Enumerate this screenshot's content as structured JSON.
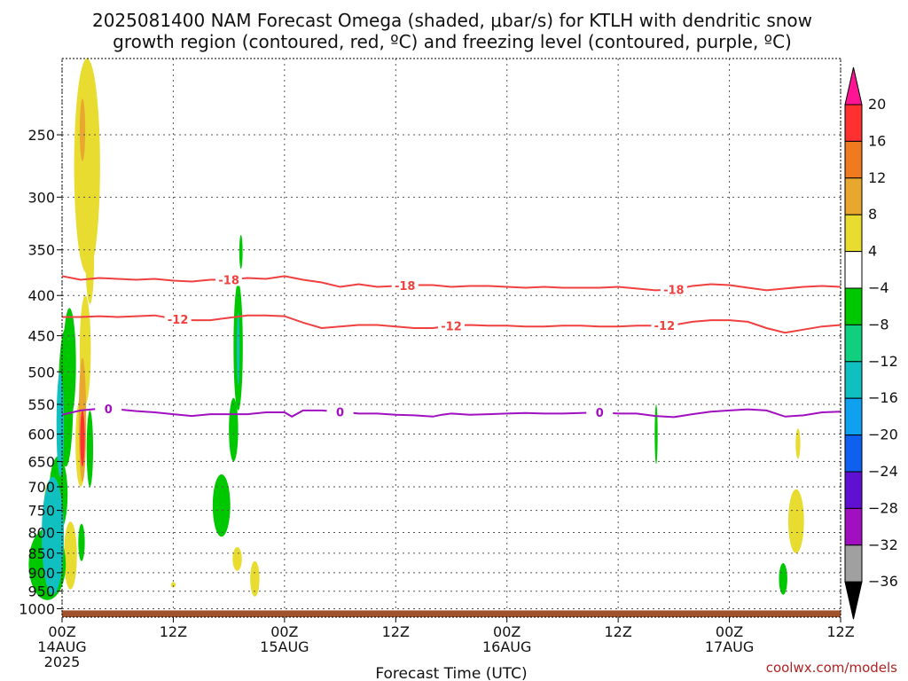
{
  "chart_data": {
    "type": "heatmap",
    "title_line1": "2025081400 NAM Forecast Omega (shaded, μbar/s) for KTLH with dendritic snow",
    "title_line2": "growth region (contoured, red, ºC) and freezing level (contoured, purple, ºC)",
    "xlabel": "Forecast Time (UTC)",
    "credit": "coolwx.com/models",
    "x_range_hours": [
      0,
      84
    ],
    "x_ticks": [
      {
        "h": 0,
        "line1": "00Z",
        "line2": "14AUG",
        "line3": "2025"
      },
      {
        "h": 12,
        "line1": "12Z",
        "line2": "",
        "line3": ""
      },
      {
        "h": 24,
        "line1": "00Z",
        "line2": "15AUG",
        "line3": ""
      },
      {
        "h": 36,
        "line1": "12Z",
        "line2": "",
        "line3": ""
      },
      {
        "h": 48,
        "line1": "00Z",
        "line2": "16AUG",
        "line3": ""
      },
      {
        "h": 60,
        "line1": "12Z",
        "line2": "",
        "line3": ""
      },
      {
        "h": 72,
        "line1": "00Z",
        "line2": "17AUG",
        "line3": ""
      },
      {
        "h": 84,
        "line1": "12Z",
        "line2": "",
        "line3": ""
      }
    ],
    "y_range_hpa": [
      200,
      1025
    ],
    "y_ticks": [
      250,
      300,
      350,
      400,
      450,
      500,
      550,
      600,
      650,
      700,
      750,
      800,
      850,
      900,
      950,
      1000
    ],
    "colorbar": {
      "labels": [
        "20",
        "16",
        "12",
        "8",
        "4",
        "−4",
        "−8",
        "−12",
        "−16",
        "−20",
        "−24",
        "−28",
        "−32",
        "−36"
      ],
      "colors": [
        "#ff1493",
        "#ff3030",
        "#f07a20",
        "#e8a830",
        "#e8dc30",
        "#ffffff",
        "#00c800",
        "#10d080",
        "#10c0c0",
        "#10a0f0",
        "#1060f0",
        "#6010d0",
        "#a010c0",
        "#a0a0a0",
        "#000000"
      ]
    },
    "contours": [
      {
        "name": "-18",
        "color": "#f04040",
        "label_h": [
          [
            18,
            "-18"
          ],
          [
            37,
            "-18"
          ],
          [
            66,
            "-18"
          ]
        ],
        "points": [
          [
            0,
            378
          ],
          [
            2,
            382
          ],
          [
            4,
            380
          ],
          [
            6,
            381
          ],
          [
            8,
            382
          ],
          [
            10,
            381
          ],
          [
            12,
            383
          ],
          [
            14,
            384
          ],
          [
            16,
            382
          ],
          [
            18,
            382
          ],
          [
            20,
            380
          ],
          [
            22,
            381
          ],
          [
            24,
            378
          ],
          [
            26,
            382
          ],
          [
            28,
            385
          ],
          [
            30,
            390
          ],
          [
            32,
            387
          ],
          [
            34,
            390
          ],
          [
            36,
            389
          ],
          [
            38,
            388
          ],
          [
            40,
            388
          ],
          [
            42,
            390
          ],
          [
            44,
            389
          ],
          [
            46,
            389
          ],
          [
            48,
            390
          ],
          [
            50,
            391
          ],
          [
            52,
            390
          ],
          [
            54,
            391
          ],
          [
            56,
            391
          ],
          [
            58,
            391
          ],
          [
            60,
            390
          ],
          [
            62,
            392
          ],
          [
            64,
            394
          ],
          [
            66,
            393
          ],
          [
            68,
            389
          ],
          [
            70,
            387
          ],
          [
            72,
            388
          ],
          [
            74,
            391
          ],
          [
            76,
            394
          ],
          [
            78,
            392
          ],
          [
            80,
            390
          ],
          [
            82,
            389
          ],
          [
            84,
            390
          ]
        ]
      },
      {
        "name": "-12",
        "color": "#f04040",
        "label_h": [
          [
            12.5,
            "-12"
          ],
          [
            42,
            "-12"
          ],
          [
            65,
            "-12"
          ]
        ],
        "points": [
          [
            0,
            426
          ],
          [
            2,
            426
          ],
          [
            4,
            425
          ],
          [
            6,
            426
          ],
          [
            8,
            425
          ],
          [
            10,
            424
          ],
          [
            12,
            428
          ],
          [
            14,
            430
          ],
          [
            16,
            430
          ],
          [
            18,
            427
          ],
          [
            20,
            424
          ],
          [
            22,
            424
          ],
          [
            24,
            425
          ],
          [
            26,
            433
          ],
          [
            28,
            440
          ],
          [
            30,
            438
          ],
          [
            32,
            436
          ],
          [
            34,
            436
          ],
          [
            36,
            438
          ],
          [
            38,
            440
          ],
          [
            40,
            440
          ],
          [
            42,
            437
          ],
          [
            44,
            436
          ],
          [
            46,
            437
          ],
          [
            48,
            437
          ],
          [
            50,
            438
          ],
          [
            52,
            438
          ],
          [
            54,
            437
          ],
          [
            56,
            437
          ],
          [
            58,
            438
          ],
          [
            60,
            438
          ],
          [
            62,
            437
          ],
          [
            64,
            437
          ],
          [
            66,
            436
          ],
          [
            68,
            432
          ],
          [
            70,
            430
          ],
          [
            72,
            430
          ],
          [
            74,
            432
          ],
          [
            76,
            440
          ],
          [
            78,
            446
          ],
          [
            80,
            442
          ],
          [
            82,
            438
          ],
          [
            84,
            436
          ]
        ]
      },
      {
        "name": "0",
        "color": "#a010c0",
        "label_h": [
          [
            5,
            "0"
          ],
          [
            30,
            "0"
          ],
          [
            58,
            "0"
          ]
        ],
        "points": [
          [
            0,
            567
          ],
          [
            2,
            560
          ],
          [
            4,
            557
          ],
          [
            6,
            558
          ],
          [
            8,
            561
          ],
          [
            10,
            563
          ],
          [
            12,
            566
          ],
          [
            14,
            569
          ],
          [
            16,
            566
          ],
          [
            18,
            566
          ],
          [
            20,
            566
          ],
          [
            22,
            563
          ],
          [
            24,
            563
          ],
          [
            24.8,
            570
          ],
          [
            26,
            560
          ],
          [
            28,
            560
          ],
          [
            30,
            562
          ],
          [
            32,
            565
          ],
          [
            34,
            565
          ],
          [
            36,
            567
          ],
          [
            38,
            568
          ],
          [
            40,
            570
          ],
          [
            41,
            567
          ],
          [
            42,
            565
          ],
          [
            44,
            567
          ],
          [
            46,
            566
          ],
          [
            48,
            565
          ],
          [
            50,
            564
          ],
          [
            52,
            565
          ],
          [
            54,
            565
          ],
          [
            56,
            564
          ],
          [
            58,
            563
          ],
          [
            60,
            565
          ],
          [
            62,
            565
          ],
          [
            64,
            569
          ],
          [
            66,
            571
          ],
          [
            68,
            566
          ],
          [
            70,
            562
          ],
          [
            72,
            560
          ],
          [
            74,
            558
          ],
          [
            76,
            560
          ],
          [
            78,
            570
          ],
          [
            80,
            568
          ],
          [
            82,
            563
          ],
          [
            84,
            562
          ]
        ]
      }
    ],
    "shaded_regions": [
      {
        "color": "#00c800",
        "h": 0.8,
        "p_top": 415,
        "p_bot": 575,
        "w": 0.7
      },
      {
        "color": "#e8dc30",
        "h": 0.9,
        "p_top": 775,
        "p_bot": 945,
        "w": 0.7
      },
      {
        "color": "#e8dc30",
        "h": 12.0,
        "p_top": 925,
        "p_bot": 940,
        "w": 0.25
      },
      {
        "color": "#e8dc30",
        "h": 2.7,
        "p_top": 200,
        "p_bot": 375,
        "w": 1.4
      },
      {
        "color": "#e8a830",
        "h": 2.2,
        "p_top": 225,
        "p_bot": 270,
        "w": 0.3
      },
      {
        "color": "#e8dc30",
        "h": 3.0,
        "p_top": 320,
        "p_bot": 410,
        "w": 0.45
      },
      {
        "color": "#e8dc30",
        "h": 2.5,
        "p_top": 400,
        "p_bot": 550,
        "w": 0.6
      },
      {
        "color": "#e8dc30",
        "h": 2.0,
        "p_top": 540,
        "p_bot": 700,
        "w": 0.55
      },
      {
        "color": "#e8dc30",
        "h": -1.4,
        "p_top": 690,
        "p_bot": 760,
        "w": 0.5
      },
      {
        "color": "#00c800",
        "h": 3.0,
        "p_top": 560,
        "p_bot": 700,
        "w": 0.35
      },
      {
        "color": "#00c800",
        "h": 2.1,
        "p_top": 780,
        "p_bot": 870,
        "w": 0.35
      },
      {
        "color": "#00c800",
        "h": 0.4,
        "p_top": 440,
        "p_bot": 660,
        "w": 0.8
      },
      {
        "color": "#00c800",
        "h": -0.4,
        "p_top": 640,
        "p_bot": 800,
        "w": 1.0
      },
      {
        "color": "#00c800",
        "h": -1.6,
        "p_top": 790,
        "p_bot": 975,
        "w": 2.0
      },
      {
        "color": "#10c0c0",
        "h": -0.2,
        "p_top": 500,
        "p_bot": 680,
        "w": 0.4
      },
      {
        "color": "#10c0c0",
        "h": -1.0,
        "p_top": 680,
        "p_bot": 960,
        "w": 1.2
      },
      {
        "color": "#e8a830",
        "h": 2.2,
        "p_top": 480,
        "p_bot": 690,
        "w": 0.4
      },
      {
        "color": "#ff3030",
        "h": 2.2,
        "p_top": 560,
        "p_bot": 660,
        "w": 0.25
      },
      {
        "color": "#00c800",
        "h": 19.0,
        "p_top": 385,
        "p_bot": 560,
        "w": 0.5
      },
      {
        "color": "#10c0c0",
        "h": 19.0,
        "p_top": 420,
        "p_bot": 520,
        "w": 0.15
      },
      {
        "color": "#00c800",
        "h": 18.5,
        "p_top": 540,
        "p_bot": 650,
        "w": 0.5
      },
      {
        "color": "#00c800",
        "h": 17.2,
        "p_top": 675,
        "p_bot": 810,
        "w": 0.95
      },
      {
        "color": "#00c800",
        "h": 19.3,
        "p_top": 335,
        "p_bot": 370,
        "w": 0.18
      },
      {
        "color": "#e8dc30",
        "h": 18.9,
        "p_top": 835,
        "p_bot": 895,
        "w": 0.5
      },
      {
        "color": "#e8dc30",
        "h": 20.8,
        "p_top": 870,
        "p_bot": 965,
        "w": 0.5
      },
      {
        "color": "#00c800",
        "h": 64.1,
        "p_top": 550,
        "p_bot": 655,
        "w": 0.16
      },
      {
        "color": "#e8dc30",
        "h": 79.4,
        "p_top": 590,
        "p_bot": 645,
        "w": 0.25
      },
      {
        "color": "#e8dc30",
        "h": 79.2,
        "p_top": 705,
        "p_bot": 850,
        "w": 0.85
      },
      {
        "color": "#00c800",
        "h": 77.8,
        "p_top": 875,
        "p_bot": 960,
        "w": 0.45
      }
    ],
    "ground": {
      "color": "#a0522d",
      "p_top": 1005
    }
  }
}
